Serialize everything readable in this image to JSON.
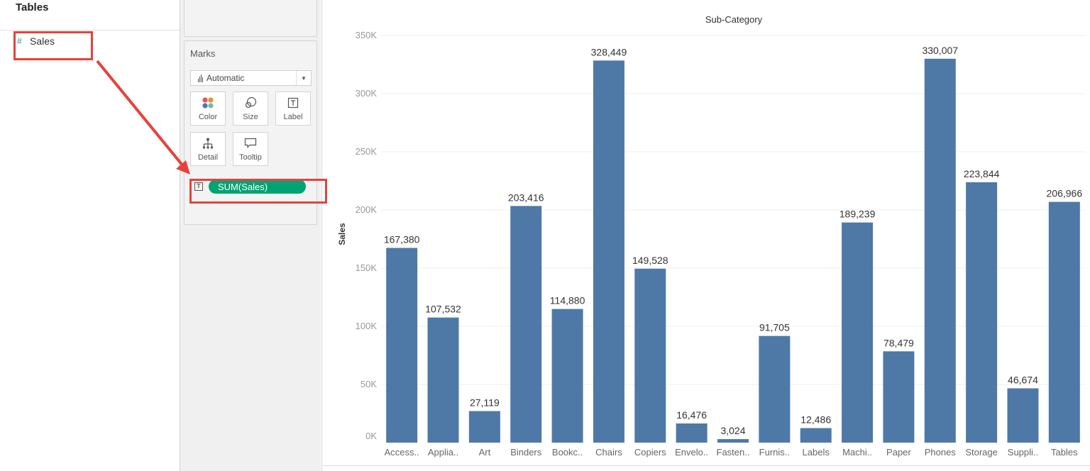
{
  "data_pane": {
    "title": "Tables",
    "field": {
      "icon": "hash-icon",
      "label": "Sales"
    }
  },
  "marks": {
    "title": "Marks",
    "mark_type": "Automatic",
    "buttons": [
      {
        "label": "Color",
        "icon": "color-icon"
      },
      {
        "label": "Size",
        "icon": "size-icon"
      },
      {
        "label": "Label",
        "icon": "label-icon"
      },
      {
        "label": "Detail",
        "icon": "detail-icon"
      },
      {
        "label": "Tooltip",
        "icon": "tooltip-icon"
      }
    ],
    "pill": {
      "type_icon": "text-icon",
      "label": "SUM(Sales)"
    }
  },
  "colors": {
    "bar": "#4e79a7",
    "pill": "#00a374",
    "annotation": "#e8413b"
  },
  "chart_data": {
    "type": "bar",
    "title": "Sub-Category",
    "ylabel": "Sales",
    "ylim": [
      0,
      350000
    ],
    "ytick_labels": [
      "0K",
      "50K",
      "100K",
      "150K",
      "200K",
      "250K",
      "300K",
      "350K"
    ],
    "categories": [
      "Access..",
      "Applia..",
      "Art",
      "Binders",
      "Bookc..",
      "Chairs",
      "Copiers",
      "Envelo..",
      "Fasten..",
      "Furnis..",
      "Labels",
      "Machi..",
      "Paper",
      "Phones",
      "Storage",
      "Suppli..",
      "Tables"
    ],
    "values": [
      167380,
      107532,
      27119,
      203416,
      114880,
      328449,
      149528,
      16476,
      3024,
      91705,
      12486,
      189239,
      78479,
      330007,
      223844,
      46674,
      206966
    ],
    "data_labels": [
      "167,380",
      "107,532",
      "27,119",
      "203,416",
      "114,880",
      "328,449",
      "149,528",
      "16,476",
      "3,024",
      "91,705",
      "12,486",
      "189,239",
      "78,479",
      "330,007",
      "223,844",
      "46,674",
      "206,966"
    ],
    "grid": true
  }
}
